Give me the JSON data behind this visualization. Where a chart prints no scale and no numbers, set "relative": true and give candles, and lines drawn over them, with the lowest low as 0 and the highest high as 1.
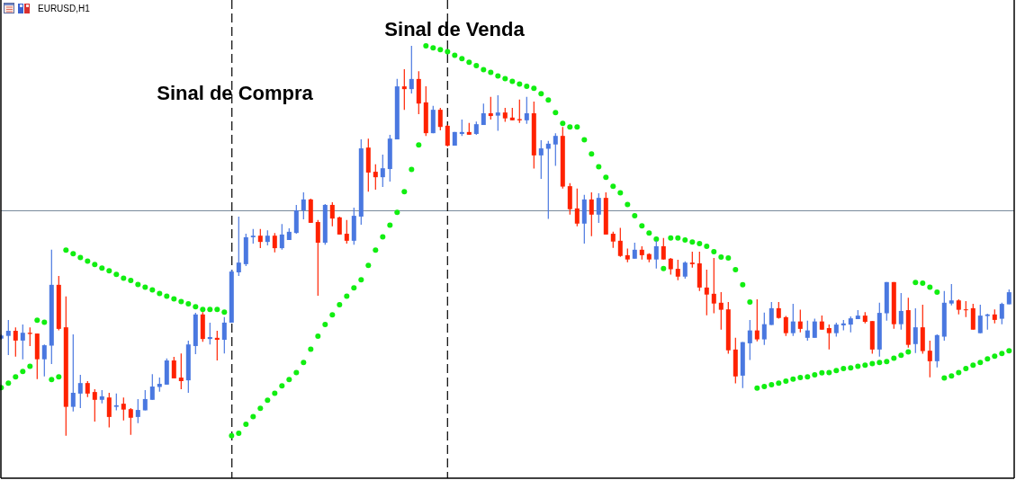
{
  "chart_data": {
    "type": "candlestick",
    "title": "EURUSD,H1",
    "relative": true,
    "categories": [
      null,
      null,
      null,
      null,
      null,
      null,
      null,
      null,
      null,
      null,
      null,
      null,
      null,
      null,
      null,
      null,
      null,
      null,
      null,
      null,
      null,
      null,
      null,
      null,
      null,
      null,
      null,
      null,
      null,
      null,
      null,
      null,
      null,
      null,
      null,
      null,
      null,
      null,
      null,
      null,
      null,
      null,
      null,
      null,
      null,
      null,
      null,
      null,
      null,
      null,
      null,
      null,
      null,
      null,
      null,
      null,
      null,
      null,
      null,
      null,
      null,
      null,
      null,
      null,
      null,
      null,
      null,
      null,
      null,
      null,
      null,
      null,
      null,
      null,
      null,
      null,
      null,
      null,
      null,
      null,
      null,
      null,
      null,
      null,
      null,
      null,
      null,
      null,
      null,
      null,
      null,
      null,
      null,
      null,
      null,
      null,
      null,
      null,
      null,
      null,
      null,
      null,
      null,
      null,
      null,
      null,
      null,
      null,
      null,
      null,
      null,
      null,
      null,
      null,
      null,
      null,
      null,
      null,
      null,
      null,
      null,
      null,
      null,
      null,
      null,
      null,
      null,
      null,
      null,
      null,
      null,
      null,
      null,
      null,
      null,
      null,
      null,
      null,
      null,
      null,
      null
    ],
    "ohlc": [
      [
        0.249,
        0.26,
        0.246,
        0.257
      ],
      [
        0.256,
        0.297,
        0.207,
        0.269
      ],
      [
        0.269,
        0.278,
        0.203,
        0.244
      ],
      [
        0.244,
        0.285,
        0.196,
        0.264
      ],
      [
        0.264,
        0.278,
        0.23,
        0.261
      ],
      [
        0.262,
        0.262,
        0.145,
        0.196
      ],
      [
        0.196,
        0.234,
        0.152,
        0.232
      ],
      [
        0.231,
        0.477,
        0.184,
        0.387
      ],
      [
        0.387,
        0.41,
        0.27,
        0.274
      ],
      [
        0.278,
        0.357,
        0,
        0.074
      ],
      [
        0.074,
        0.26,
        0.062,
        0.11
      ],
      [
        0.108,
        0.156,
        0.071,
        0.135
      ],
      [
        0.135,
        0.14,
        0.099,
        0.108
      ],
      [
        0.112,
        0.119,
        0.036,
        0.092
      ],
      [
        0.092,
        0.117,
        0.083,
        0.101
      ],
      [
        0.098,
        0.11,
        0.021,
        0.048
      ],
      [
        0.074,
        0.108,
        0.065,
        0.078
      ],
      [
        0.082,
        0.098,
        0.039,
        0.067
      ],
      [
        0.068,
        0.071,
        0.002,
        0.046
      ],
      [
        0.048,
        0.094,
        0.032,
        0.066
      ],
      [
        0.065,
        0.117,
        0.065,
        0.094
      ],
      [
        0.092,
        0.158,
        0.092,
        0.126
      ],
      [
        0.125,
        0.149,
        0.113,
        0.133
      ],
      [
        0.131,
        0.198,
        0.131,
        0.193
      ],
      [
        0.193,
        0.202,
        0.147,
        0.147
      ],
      [
        0.149,
        0.211,
        0.119,
        0.14
      ],
      [
        0.142,
        0.244,
        0.11,
        0.234
      ],
      [
        0.23,
        0.315,
        0.209,
        0.311
      ],
      [
        0.311,
        0.317,
        0.241,
        0.248
      ],
      [
        0.248,
        0.29,
        0.234,
        0.253
      ],
      [
        0.251,
        0.269,
        0.193,
        0.246
      ],
      [
        0.246,
        0.304,
        0.211,
        0.29
      ],
      [
        0.29,
        0.426,
        0.29,
        0.421
      ],
      [
        0.419,
        0.562,
        0.41,
        0.444
      ],
      [
        0.44,
        0.518,
        0.435,
        0.509
      ],
      [
        0.509,
        0.53,
        0.493,
        0.513
      ],
      [
        0.513,
        0.53,
        0.481,
        0.497
      ],
      [
        0.497,
        0.527,
        0.488,
        0.513
      ],
      [
        0.513,
        0.52,
        0.47,
        0.481
      ],
      [
        0.481,
        0.543,
        0.477,
        0.516
      ],
      [
        0.502,
        0.532,
        0.502,
        0.523
      ],
      [
        0.52,
        0.592,
        0.518,
        0.578
      ],
      [
        0.578,
        0.624,
        0.555,
        0.606
      ],
      [
        0.606,
        0.608,
        0.546,
        0.546
      ],
      [
        0.548,
        0.553,
        0.359,
        0.495
      ],
      [
        0.495,
        0.594,
        0.49,
        0.592
      ],
      [
        0.592,
        0.599,
        0.537,
        0.557
      ],
      [
        0.56,
        0.562,
        0.516,
        0.516
      ],
      [
        0.518,
        0.553,
        0.493,
        0.5
      ],
      [
        0.5,
        0.585,
        0.49,
        0.564
      ],
      [
        0.562,
        0.76,
        0.541,
        0.737
      ],
      [
        0.739,
        0.762,
        0.626,
        0.675
      ],
      [
        0.677,
        0.696,
        0.631,
        0.663
      ],
      [
        0.663,
        0.721,
        0.638,
        0.686
      ],
      [
        0.684,
        0.772,
        0.652,
        0.762
      ],
      [
        0.76,
        0.915,
        0.76,
        0.896
      ],
      [
        0.896,
        0.94,
        0.836,
        0.889
      ],
      [
        0.889,
        1,
        0.878,
        0.915
      ],
      [
        0.915,
        0.935,
        0.825,
        0.852
      ],
      [
        0.855,
        0.896,
        0.769,
        0.776
      ],
      [
        0.776,
        0.846,
        0.776,
        0.836
      ],
      [
        0.836,
        0.841,
        0.783,
        0.792
      ],
      [
        0.795,
        0.797,
        0.742,
        0.744
      ],
      [
        0.744,
        0.779,
        0.744,
        0.779
      ],
      [
        0.774,
        0.811,
        0.769,
        0.779
      ],
      [
        0.779,
        0.802,
        0.772,
        0.772
      ],
      [
        0.774,
        0.806,
        0.772,
        0.799
      ],
      [
        0.797,
        0.852,
        0.797,
        0.827
      ],
      [
        0.827,
        0.869,
        0.811,
        0.82
      ],
      [
        0.821,
        0.873,
        0.782,
        0.829
      ],
      [
        0.829,
        0.841,
        0.805,
        0.814
      ],
      [
        0.816,
        0.841,
        0.809,
        0.809
      ],
      [
        0.812,
        0.862,
        0.802,
        0.809
      ],
      [
        0.809,
        0.869,
        0.8,
        0.827
      ],
      [
        0.827,
        0.857,
        0.685,
        0.719
      ],
      [
        0.719,
        0.758,
        0.659,
        0.737
      ],
      [
        0.736,
        0.756,
        0.556,
        0.749
      ],
      [
        0.747,
        0.776,
        0.692,
        0.769
      ],
      [
        0.769,
        0.792,
        0.634,
        0.639
      ],
      [
        0.64,
        0.648,
        0.567,
        0.581
      ],
      [
        0.583,
        0.634,
        0.537,
        0.544
      ],
      [
        0.544,
        0.618,
        0.493,
        0.606
      ],
      [
        0.606,
        0.624,
        0.512,
        0.567
      ],
      [
        0.567,
        0.622,
        0.546,
        0.61
      ],
      [
        0.61,
        0.624,
        0.516,
        0.516
      ],
      [
        0.518,
        0.523,
        0.482,
        0.498
      ],
      [
        0.5,
        0.533,
        0.459,
        0.461
      ],
      [
        0.463,
        0.48,
        0.445,
        0.452
      ],
      [
        0.454,
        0.495,
        0.454,
        0.477
      ],
      [
        0.477,
        0.486,
        0.452,
        0.463
      ],
      [
        0.466,
        0.468,
        0.445,
        0.452
      ],
      [
        0.452,
        0.5,
        0.429,
        0.486
      ],
      [
        0.486,
        0.507,
        0.452,
        0.452
      ],
      [
        0.454,
        0.456,
        0.413,
        0.427
      ],
      [
        0.428,
        0.451,
        0.399,
        0.408
      ],
      [
        0.408,
        0.447,
        0.403,
        0.444
      ],
      [
        0.444,
        0.472,
        0.431,
        0.44
      ],
      [
        0.442,
        0.472,
        0.371,
        0.38
      ],
      [
        0.38,
        0.426,
        0.309,
        0.362
      ],
      [
        0.364,
        0.456,
        0.314,
        0.339
      ],
      [
        0.341,
        0.368,
        0.272,
        0.323
      ],
      [
        0.324,
        0.343,
        0.21,
        0.219
      ],
      [
        0.221,
        0.251,
        0.134,
        0.152
      ],
      [
        0.154,
        0.24,
        0.122,
        0.24
      ],
      [
        0.237,
        0.297,
        0.194,
        0.27
      ],
      [
        0.27,
        0.35,
        0.242,
        0.247
      ],
      [
        0.247,
        0.316,
        0.233,
        0.286
      ],
      [
        0.284,
        0.343,
        0.284,
        0.327
      ],
      [
        0.327,
        0.343,
        0.3,
        0.302
      ],
      [
        0.304,
        0.307,
        0.256,
        0.263
      ],
      [
        0.263,
        0.338,
        0.256,
        0.293
      ],
      [
        0.293,
        0.323,
        0.265,
        0.274
      ],
      [
        0.251,
        0.295,
        0.244,
        0.27
      ],
      [
        0.251,
        0.3,
        0.251,
        0.293
      ],
      [
        0.293,
        0.308,
        0.272,
        0.272
      ],
      [
        0.276,
        0.285,
        0.221,
        0.263
      ],
      [
        0.263,
        0.29,
        0.254,
        0.285
      ],
      [
        0.283,
        0.297,
        0.27,
        0.288
      ],
      [
        0.285,
        0.306,
        0.265,
        0.301
      ],
      [
        0.299,
        0.322,
        0.299,
        0.308
      ],
      [
        0.308,
        0.317,
        0.288,
        0.292
      ],
      [
        0.294,
        0.294,
        0.21,
        0.221
      ],
      [
        0.221,
        0.341,
        0.203,
        0.315
      ],
      [
        0.314,
        0.394,
        0.295,
        0.394
      ],
      [
        0.394,
        0.394,
        0.274,
        0.286
      ],
      [
        0.286,
        0.366,
        0.272,
        0.32
      ],
      [
        0.322,
        0.354,
        0.226,
        0.233
      ],
      [
        0.235,
        0.327,
        0.212,
        0.278
      ],
      [
        0.278,
        0.336,
        0.21,
        0.217
      ],
      [
        0.218,
        0.244,
        0.15,
        0.191
      ],
      [
        0.191,
        0.26,
        0.175,
        0.258
      ],
      [
        0.254,
        0.371,
        0.244,
        0.341
      ],
      [
        0.339,
        0.389,
        0.334,
        0.347
      ],
      [
        0.347,
        0.35,
        0.311,
        0.323
      ],
      [
        0.324,
        0.345,
        0.304,
        0.323
      ],
      [
        0.327,
        0.338,
        0.272,
        0.272
      ],
      [
        0.263,
        0.336,
        0.263,
        0.308
      ],
      [
        0.307,
        0.313,
        0.272,
        0.311
      ],
      [
        0.311,
        0.324,
        0.288,
        0.297
      ],
      [
        0.3,
        0.341,
        0.286,
        0.338
      ],
      [
        0.337,
        0.375,
        0.337,
        0.368
      ]
    ],
    "colors": [
      "#4a78e0",
      "#4a78e0",
      "#ff2200",
      "#4a78e0",
      "#ff2200",
      "#ff2200",
      "#4a78e0",
      "#4a78e0",
      "#ff2200",
      "#ff2200",
      "#4a78e0",
      "#4a78e0",
      "#ff2200",
      "#ff2200",
      "#4a78e0",
      "#ff2200",
      "#4a78e0",
      "#ff2200",
      "#ff2200",
      "#4a78e0",
      "#4a78e0",
      "#4a78e0",
      "#4a78e0",
      "#4a78e0",
      "#ff2200",
      "#ff2200",
      "#4a78e0",
      "#4a78e0",
      "#ff2200",
      "#4a78e0",
      "#ff2200",
      "#4a78e0",
      "#4a78e0",
      "#4a78e0",
      "#4a78e0",
      "#4a78e0",
      "#ff2200",
      "#4a78e0",
      "#ff2200",
      "#4a78e0",
      "#4a78e0",
      "#4a78e0",
      "#4a78e0",
      "#ff2200",
      "#ff2200",
      "#4a78e0",
      "#ff2200",
      "#ff2200",
      "#ff2200",
      "#4a78e0",
      "#4a78e0",
      "#ff2200",
      "#ff2200",
      "#4a78e0",
      "#4a78e0",
      "#4a78e0",
      "#ff2200",
      "#4a78e0",
      "#ff2200",
      "#ff2200",
      "#4a78e0",
      "#ff2200",
      "#ff2200",
      "#4a78e0",
      "#4a78e0",
      "#ff2200",
      "#4a78e0",
      "#4a78e0",
      "#ff2200",
      "#4a78e0",
      "#ff2200",
      "#ff2200",
      "#ff2200",
      "#4a78e0",
      "#ff2200",
      "#4a78e0",
      "#4a78e0",
      "#4a78e0",
      "#ff2200",
      "#ff2200",
      "#ff2200",
      "#4a78e0",
      "#ff2200",
      "#4a78e0",
      "#ff2200",
      "#ff2200",
      "#ff2200",
      "#ff2200",
      "#4a78e0",
      "#ff2200",
      "#ff2200",
      "#4a78e0",
      "#ff2200",
      "#ff2200",
      "#ff2200",
      "#4a78e0",
      "#ff2200",
      "#ff2200",
      "#ff2200",
      "#ff2200",
      "#ff2200",
      "#ff2200",
      "#ff2200",
      "#4a78e0",
      "#4a78e0",
      "#ff2200",
      "#4a78e0",
      "#4a78e0",
      "#ff2200",
      "#ff2200",
      "#4a78e0",
      "#ff2200",
      "#4a78e0",
      "#4a78e0",
      "#ff2200",
      "#ff2200",
      "#4a78e0",
      "#4a78e0",
      "#4a78e0",
      "#4a78e0",
      "#ff2200",
      "#ff2200",
      "#4a78e0",
      "#4a78e0",
      "#ff2200",
      "#4a78e0",
      "#ff2200",
      "#4a78e0",
      "#ff2200",
      "#ff2200",
      "#4a78e0",
      "#4a78e0",
      "#4a78e0",
      "#ff2200",
      "#ff2200",
      "#ff2200",
      "#4a78e0",
      "#4a78e0",
      "#ff2200",
      "#4a78e0",
      "#4a78e0"
    ],
    "series": [
      {
        "type": "scatter",
        "color": "#11ee11",
        "marker": "circle",
        "values": [
          0.123,
          0.135,
          0.151,
          0.165,
          0.178,
          0.296,
          0.291,
          0.144,
          0.151,
          0.476,
          0.467,
          0.457,
          0.448,
          0.439,
          0.43,
          0.423,
          0.414,
          0.404,
          0.398,
          0.388,
          0.381,
          0.374,
          0.365,
          0.358,
          0.351,
          0.344,
          0.338,
          0.331,
          0.324,
          0.324,
          0.324,
          0.317,
          0,
          0.006,
          0.029,
          0.049,
          0.07,
          0.091,
          0.109,
          0.128,
          0.144,
          0.162,
          0.188,
          0.222,
          0.255,
          0.285,
          0.31,
          0.336,
          0.358,
          0.379,
          0.4,
          0.437,
          0.476,
          0.51,
          0.54,
          0.573,
          0.626,
          0.683,
          0.746,
          1,
          0.995,
          0.99,
          0.985,
          0.976,
          0.967,
          0.958,
          0.949,
          0.939,
          0.932,
          0.923,
          0.916,
          0.909,
          0.902,
          0.896,
          0.891,
          0.877,
          0.861,
          0.829,
          0.801,
          0.792,
          0.792,
          0.759,
          0.723,
          0.69,
          0.663,
          0.64,
          0.623,
          0.593,
          0.564,
          0.538,
          0.52,
          0.504,
          0.429,
          0.507,
          0.507,
          0.502,
          0.497,
          0.493,
          0.486,
          0.472,
          0.458,
          0.456,
          0.426,
          0.387,
          0.343,
          0.122,
          0.126,
          0.131,
          0.135,
          0.14,
          0.145,
          0.149,
          0.151,
          0.156,
          0.161,
          0.162,
          0.167,
          0.172,
          0.174,
          0.178,
          0.181,
          0.185,
          0.188,
          0.19,
          0.199,
          0.206,
          0.215,
          0.393,
          0.391,
          0.381,
          0.368,
          0.148,
          0.153,
          0.162,
          0.172,
          0.181,
          0.188,
          0.197,
          0.204,
          0.211,
          0.218
        ]
      }
    ],
    "ref_lines": [
      {
        "axis": "y",
        "value": 0.577,
        "color": "#778899"
      }
    ],
    "annotations": [
      "Sinal de Compra",
      "Sinal de Venda"
    ]
  }
}
